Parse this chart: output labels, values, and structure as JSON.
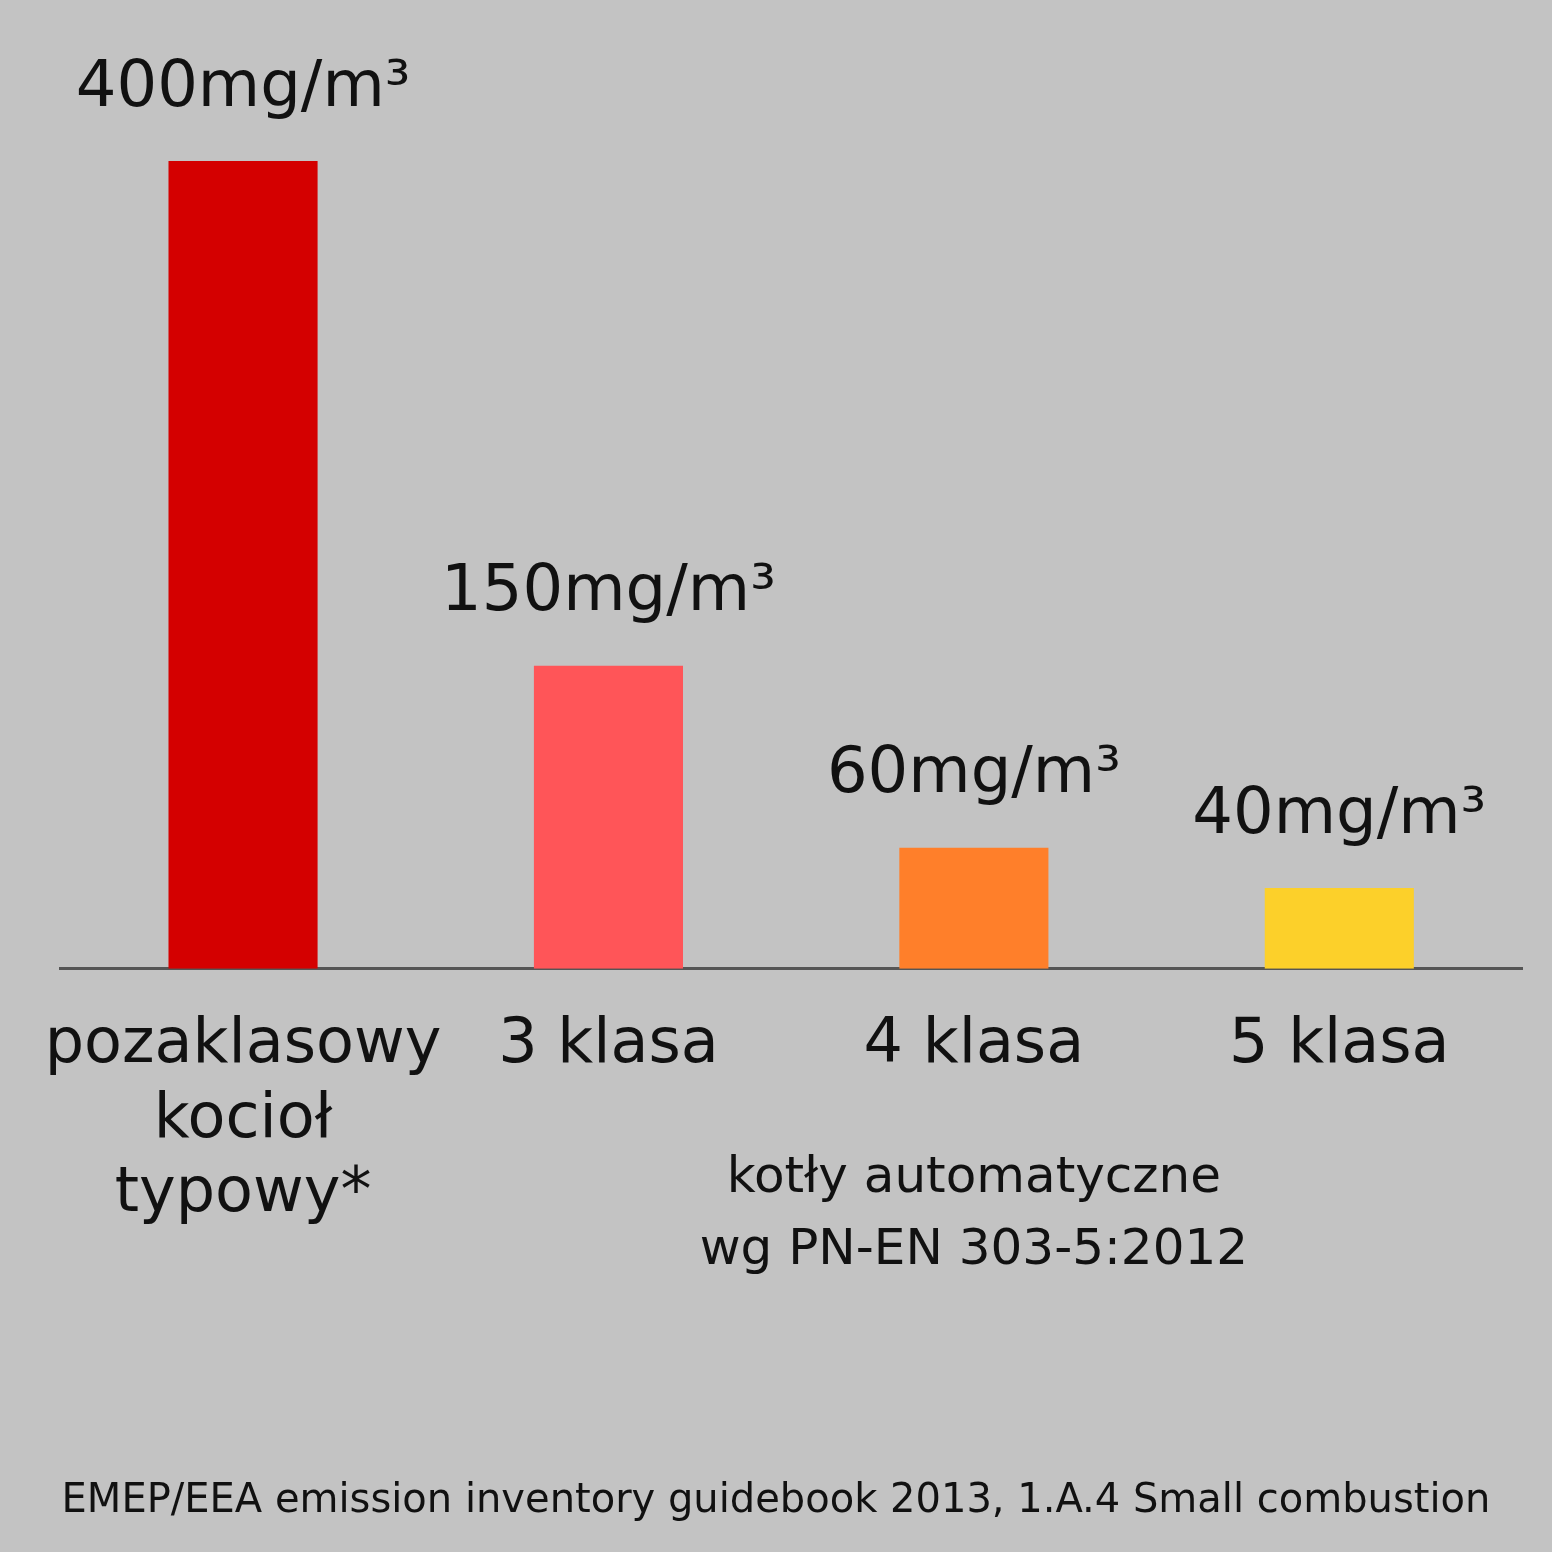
{
  "chart_data": {
    "type": "bar",
    "categories": [
      "pozaklasowy kocioł typowy*",
      "3 klasa",
      "4 klasa",
      "5 klasa"
    ],
    "values": [
      400,
      150,
      60,
      40
    ],
    "colors": [
      "#d40000",
      "#ff5558",
      "#ff7f2a",
      "#fcd02a"
    ],
    "value_labels": [
      "400mg/m³",
      "150mg/m³",
      "60mg/m³",
      "40mg/m³"
    ],
    "relative": false,
    "grid": false,
    "legend": false,
    "annotations": [
      "kotły automatyczne\nwg PN-EN 303-5:2012",
      "EMEP/EEA emission inventory guidebook 2013, 1.A.4 Small combustion"
    ]
  }
}
